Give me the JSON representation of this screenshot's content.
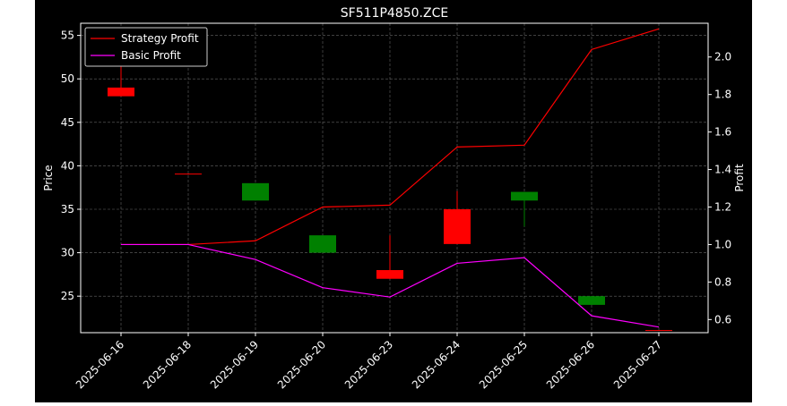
{
  "chart_data": {
    "type": "candlestick",
    "title": "SF511P4850.ZCE",
    "xlabel": "",
    "ylabel": "Price",
    "ylabel_right": "Profit",
    "categories": [
      "2025-06-16",
      "2025-06-18",
      "2025-06-19",
      "2025-06-20",
      "2025-06-23",
      "2025-06-24",
      "2025-06-25",
      "2025-06-26",
      "2025-06-27"
    ],
    "ylim": [
      20.8,
      56.4
    ],
    "ylim_right": [
      0.53,
      2.18
    ],
    "yticks": [
      25,
      30,
      35,
      40,
      45,
      50,
      55
    ],
    "yticks_right": [
      0.6,
      0.8,
      1.0,
      1.2,
      1.4,
      1.6,
      1.8,
      2.0
    ],
    "grid": true,
    "legend_position": "top-left",
    "candles": [
      {
        "date": "2025-06-16",
        "open": 49.0,
        "high": 51.5,
        "low": 48.0,
        "close": 48.0
      },
      {
        "date": "2025-06-18",
        "open": 39.1,
        "high": 39.1,
        "low": 39.0,
        "close": 39.0
      },
      {
        "date": "2025-06-19",
        "open": 36.0,
        "high": 38.0,
        "low": 36.0,
        "close": 38.0
      },
      {
        "date": "2025-06-20",
        "open": 30.0,
        "high": 32.0,
        "low": 30.0,
        "close": 32.0
      },
      {
        "date": "2025-06-23",
        "open": 28.0,
        "high": 32.0,
        "low": 27.0,
        "close": 27.0
      },
      {
        "date": "2025-06-24",
        "open": 35.0,
        "high": 37.1,
        "low": 31.0,
        "close": 31.0
      },
      {
        "date": "2025-06-25",
        "open": 36.0,
        "high": 37.0,
        "low": 33.0,
        "close": 37.0
      },
      {
        "date": "2025-06-26",
        "open": 24.0,
        "high": 25.0,
        "low": 24.0,
        "close": 25.0
      },
      {
        "date": "2025-06-27",
        "open": 21.1,
        "high": 21.1,
        "low": 21.0,
        "close": 21.0
      }
    ],
    "series": [
      {
        "name": "Strategy Profit",
        "color": "#ff0000",
        "axis": "right",
        "values": [
          1.0,
          1.0,
          1.02,
          1.2,
          1.21,
          1.52,
          1.53,
          2.04,
          2.15
        ]
      },
      {
        "name": "Basic Profit",
        "color": "#ff00ff",
        "axis": "right",
        "values": [
          1.0,
          1.0,
          0.92,
          0.77,
          0.72,
          0.9,
          0.93,
          0.62,
          0.56
        ]
      }
    ],
    "up_color": "#008000",
    "down_color": "#ff0000"
  }
}
